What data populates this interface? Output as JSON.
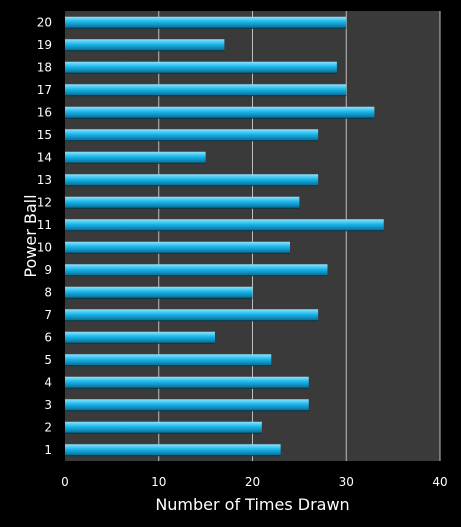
{
  "chart_data": {
    "type": "bar",
    "orientation": "horizontal",
    "title": "",
    "xlabel": "Number of Times Drawn",
    "ylabel": "Power Ball",
    "xlim": [
      0,
      40
    ],
    "xticks": [
      0,
      10,
      20,
      30,
      40
    ],
    "grid": true,
    "categories": [
      "1",
      "2",
      "3",
      "4",
      "5",
      "6",
      "7",
      "8",
      "9",
      "10",
      "11",
      "12",
      "13",
      "14",
      "15",
      "16",
      "17",
      "18",
      "19",
      "20"
    ],
    "values": [
      23,
      21,
      26,
      26,
      22,
      16,
      27,
      20,
      28,
      24,
      34,
      25,
      27,
      15,
      27,
      33,
      30,
      29,
      17,
      30
    ]
  },
  "colors": {
    "background": "#000000",
    "plot_area": "#3a3a3a",
    "bar": "#1ab8ec",
    "bar_highlight": "#8fe3ff",
    "bar_shadow": "#0a6f98",
    "gridline": "#bdbdbd",
    "text": "#ffffff"
  }
}
